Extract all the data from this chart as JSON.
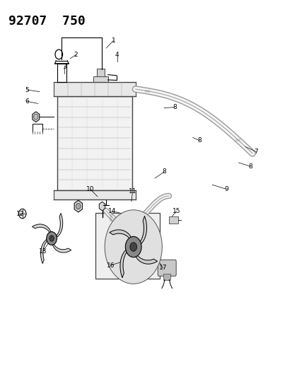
{
  "title": "92707  750",
  "bg_color": "#ffffff",
  "line_color": "#000000",
  "title_fontsize": 13,
  "title_weight": "bold",
  "fig_width": 4.14,
  "fig_height": 5.33,
  "dpi": 100
}
